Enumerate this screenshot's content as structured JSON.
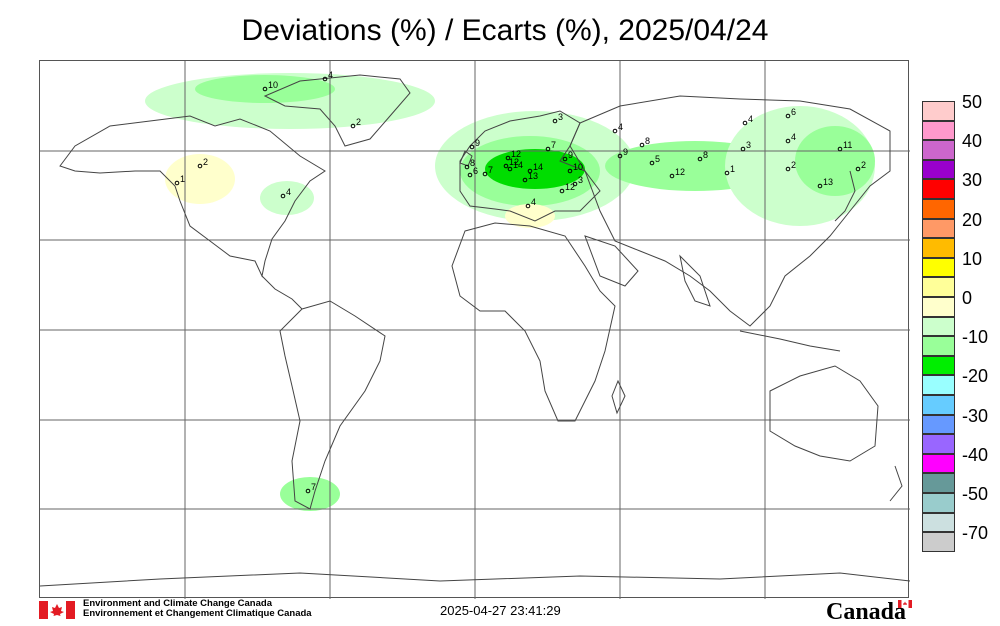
{
  "title": "Deviations (%) / Ecarts (%), 2025/04/24",
  "legend": {
    "items": [
      {
        "label": "50",
        "color": "#ffcccc"
      },
      {
        "label": "",
        "color": "#ff99cc"
      },
      {
        "label": "40",
        "color": "#cc66cc"
      },
      {
        "label": "",
        "color": "#9900cc"
      },
      {
        "label": "30",
        "color": "#ff0000"
      },
      {
        "label": "",
        "color": "#ff6600"
      },
      {
        "label": "20",
        "color": "#ff9966"
      },
      {
        "label": "",
        "color": "#ffbb00"
      },
      {
        "label": "10",
        "color": "#ffff00"
      },
      {
        "label": "",
        "color": "#ffff99"
      },
      {
        "label": "0",
        "color": "#ffffcc"
      },
      {
        "label": "",
        "color": "#ccffcc"
      },
      {
        "label": "-10",
        "color": "#99ff99"
      },
      {
        "label": "",
        "color": "#00ee00"
      },
      {
        "label": "-20",
        "color": "#99ffff"
      },
      {
        "label": "",
        "color": "#66ccff"
      },
      {
        "label": "-30",
        "color": "#6699ff"
      },
      {
        "label": "",
        "color": "#9966ff"
      },
      {
        "label": "-40",
        "color": "#ff00ff"
      },
      {
        "label": "",
        "color": "#669999"
      },
      {
        "label": "-50",
        "color": "#99cccc"
      },
      {
        "label": "",
        "color": "#cce0e0"
      },
      {
        "label": "-70",
        "color": "#cccccc"
      }
    ]
  },
  "stations": [
    {
      "label": "10",
      "region": "greenland"
    },
    {
      "label": "4",
      "region": "greenland"
    },
    {
      "label": "2",
      "region": "greenland"
    },
    {
      "label": "2",
      "region": "north-america"
    },
    {
      "label": "1",
      "region": "north-america"
    },
    {
      "label": "4",
      "region": "north-america"
    },
    {
      "label": "3",
      "region": "europe"
    },
    {
      "label": "4",
      "region": "europe"
    },
    {
      "label": "9",
      "region": "europe"
    },
    {
      "label": "7",
      "region": "europe"
    },
    {
      "label": "12",
      "region": "europe"
    },
    {
      "label": "8",
      "region": "europe"
    },
    {
      "label": "12",
      "region": "europe"
    },
    {
      "label": "6",
      "region": "europe"
    },
    {
      "label": "7",
      "region": "europe"
    },
    {
      "label": "14",
      "region": "europe"
    },
    {
      "label": "14",
      "region": "europe"
    },
    {
      "label": "13",
      "region": "europe"
    },
    {
      "label": "9",
      "region": "europe"
    },
    {
      "label": "10",
      "region": "europe"
    },
    {
      "label": "3",
      "region": "europe"
    },
    {
      "label": "12",
      "region": "europe"
    },
    {
      "label": "4",
      "region": "mediterranean"
    },
    {
      "label": "9",
      "region": "asia"
    },
    {
      "label": "8",
      "region": "asia"
    },
    {
      "label": "5",
      "region": "asia"
    },
    {
      "label": "12",
      "region": "asia"
    },
    {
      "label": "8",
      "region": "asia"
    },
    {
      "label": "1",
      "region": "asia"
    },
    {
      "label": "4",
      "region": "asia"
    },
    {
      "label": "3",
      "region": "asia"
    },
    {
      "label": "6",
      "region": "asia"
    },
    {
      "label": "4",
      "region": "asia"
    },
    {
      "label": "11",
      "region": "asia"
    },
    {
      "label": "2",
      "region": "asia"
    },
    {
      "label": "2",
      "region": "asia"
    },
    {
      "label": "13",
      "region": "asia"
    },
    {
      "label": "7",
      "region": "south-america"
    }
  ],
  "footer": {
    "agency_en": "Environment and Climate Change Canada",
    "agency_fr": "Environnement et Changement Climatique Canada",
    "timestamp": "2025-04-27 23:41:29",
    "wordmark": "Canada"
  }
}
